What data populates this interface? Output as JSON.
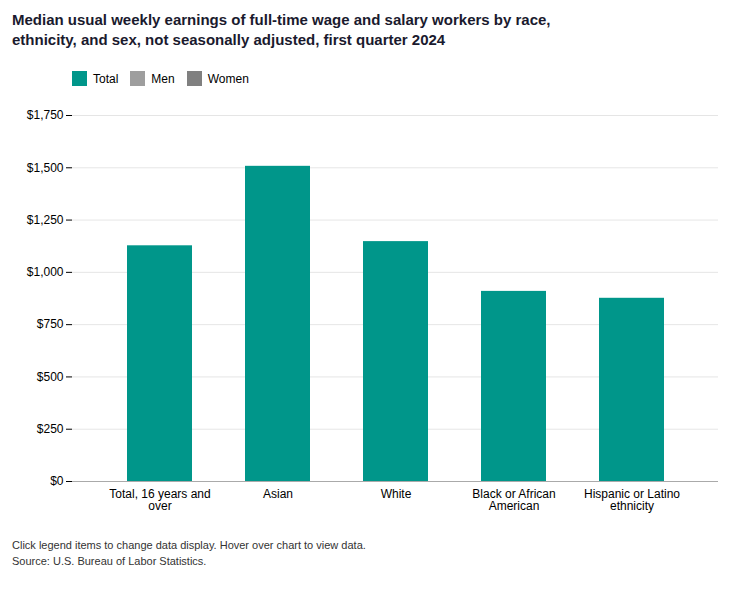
{
  "chart_data": {
    "type": "bar",
    "title": "Median usual weekly earnings of full-time wage and salary workers by race,\nethnicity, and sex, not seasonally adjusted, first quarter 2024",
    "categories": [
      "Total, 16 years and\nover",
      "Asian",
      "White",
      "Black or African\nAmerican",
      "Hispanic or Latino\nethnicity"
    ],
    "series": [
      {
        "name": "Total",
        "color": "#00968A",
        "values": [
          1127,
          1507,
          1147,
          909,
          876
        ]
      },
      {
        "name": "Men",
        "color": "#9E9E9E",
        "values": [
          null,
          null,
          null,
          null,
          null
        ]
      },
      {
        "name": "Women",
        "color": "#808080",
        "values": [
          null,
          null,
          null,
          null,
          null
        ]
      }
    ],
    "ylim": [
      0,
      1750
    ],
    "yticks": [
      {
        "value": 0,
        "label": "$0"
      },
      {
        "value": 250,
        "label": "$250"
      },
      {
        "value": 500,
        "label": "$500"
      },
      {
        "value": 750,
        "label": "$750"
      },
      {
        "value": 1000,
        "label": "$1,000"
      },
      {
        "value": 1250,
        "label": "$1,250"
      },
      {
        "value": 1500,
        "label": "$1,500"
      },
      {
        "value": 1750,
        "label": "$1,750"
      }
    ],
    "grid": true,
    "legend": "top",
    "annotations": [
      "Click legend items to change data display. Hover over chart to view data.",
      "Source: U.S. Bureau of Labor Statistics."
    ]
  }
}
